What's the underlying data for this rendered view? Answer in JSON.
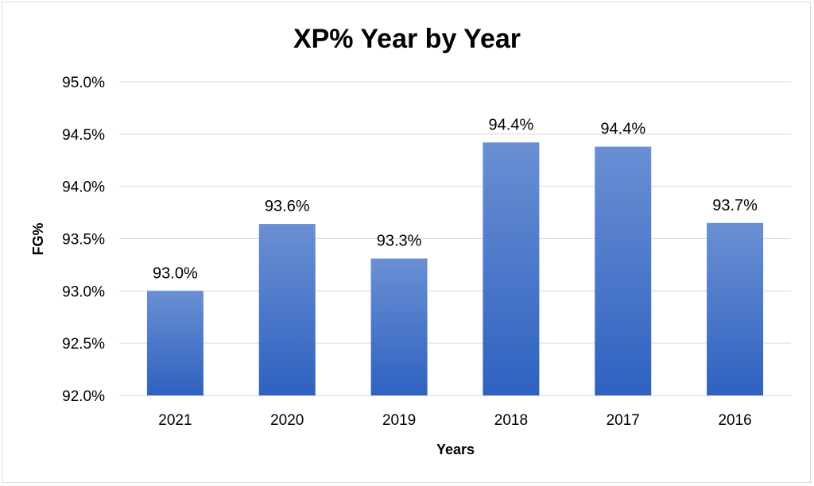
{
  "chart_data": {
    "type": "bar",
    "title": "XP% Year by Year",
    "xlabel": "Years",
    "ylabel": "FG%",
    "categories": [
      "2021",
      "2020",
      "2019",
      "2018",
      "2017",
      "2016"
    ],
    "values": [
      93.0,
      93.64,
      93.31,
      94.42,
      94.38,
      93.65
    ],
    "data_labels": [
      "93.0%",
      "93.6%",
      "93.3%",
      "94.4%",
      "94.4%",
      "93.7%"
    ],
    "ylim": [
      92.0,
      95.0
    ],
    "y_ticks": [
      92.0,
      92.5,
      93.0,
      93.5,
      94.0,
      94.5,
      95.0
    ],
    "y_tick_labels": [
      "92.0%",
      "92.5%",
      "93.0%",
      "93.5%",
      "94.0%",
      "94.5%",
      "95.0%"
    ],
    "grid": true,
    "legend": "none",
    "colors": {
      "bar_top": "#6a8fd3",
      "bar_bottom": "#2e62c0",
      "gridline": "#d9d9d9"
    }
  }
}
